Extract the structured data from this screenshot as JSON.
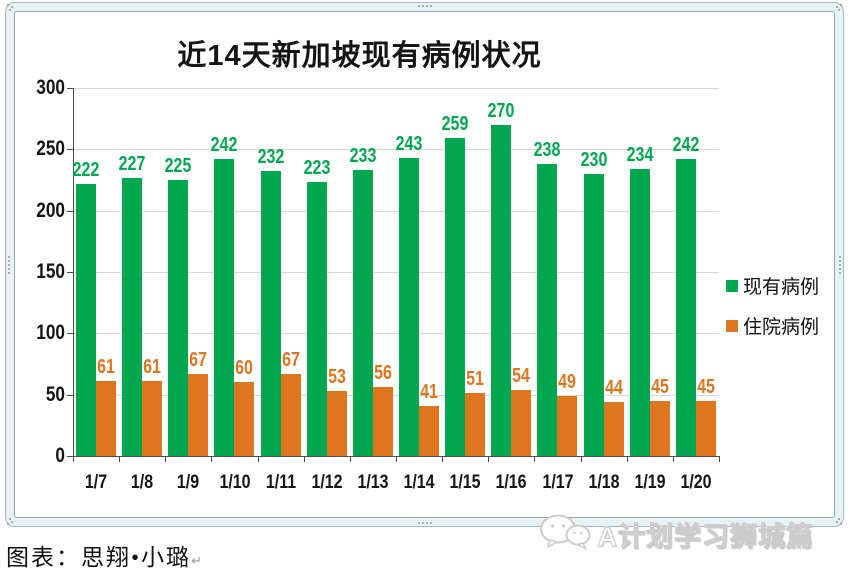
{
  "window": {
    "credit": "图表：思翔•小璐",
    "return_mark": "↵",
    "watermark": "A计划学习狮城篇"
  },
  "chart_data": {
    "type": "bar",
    "title": "近14天新加坡现有病例状况",
    "categories": [
      "1/7",
      "1/8",
      "1/9",
      "1/10",
      "1/11",
      "1/12",
      "1/13",
      "1/14",
      "1/15",
      "1/16",
      "1/17",
      "1/18",
      "1/19",
      "1/20"
    ],
    "series": [
      {
        "name": "现有病例",
        "color": "#00a74f",
        "values": [
          222,
          227,
          225,
          242,
          232,
          223,
          233,
          243,
          259,
          270,
          238,
          230,
          234,
          242
        ]
      },
      {
        "name": "住院病例",
        "color": "#de751f",
        "values": [
          61,
          61,
          67,
          60,
          67,
          53,
          56,
          41,
          51,
          54,
          49,
          44,
          45,
          45
        ]
      }
    ],
    "xlabel": "",
    "ylabel": "",
    "ylim": [
      0,
      300
    ],
    "yticks": [
      0,
      50,
      100,
      150,
      200,
      250,
      300
    ],
    "grid": true,
    "legend_position": "right"
  },
  "colors": {
    "existing_bar": "#00a74f",
    "hospitalized_bar": "#de751f",
    "gridline": "#d9d9d9",
    "axis": "#4d4d4d",
    "frame_band": "#e7f2f4",
    "frame_line": "#96a6ab"
  }
}
